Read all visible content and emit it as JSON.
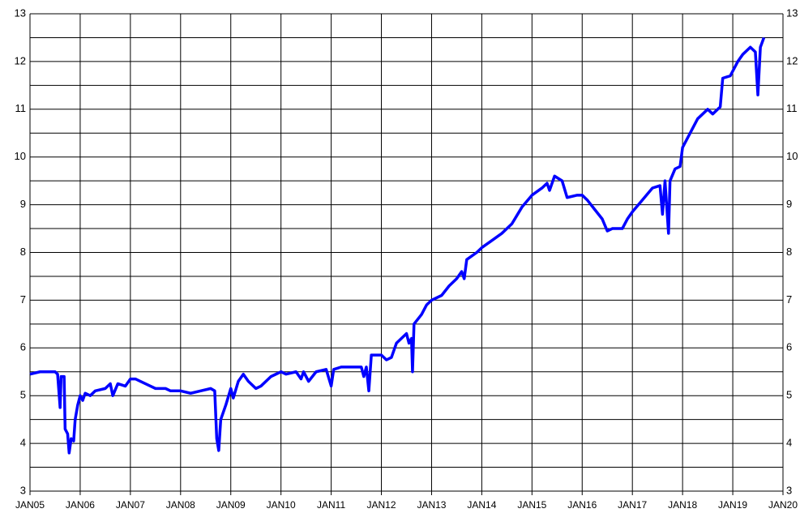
{
  "chart_data": {
    "type": "line",
    "x": [
      2005.0,
      2005.2,
      2005.4,
      2005.5,
      2005.55,
      2005.6,
      2005.62,
      2005.68,
      2005.7,
      2005.75,
      2005.78,
      2005.82,
      2005.87,
      2005.9,
      2005.95,
      2006.0,
      2006.05,
      2006.1,
      2006.2,
      2006.3,
      2006.5,
      2006.6,
      2006.65,
      2006.75,
      2006.9,
      2007.0,
      2007.1,
      2007.2,
      2007.4,
      2007.5,
      2007.7,
      2007.8,
      2008.0,
      2008.2,
      2008.4,
      2008.6,
      2008.68,
      2008.72,
      2008.76,
      2008.8,
      2008.9,
      2009.0,
      2009.05,
      2009.15,
      2009.25,
      2009.35,
      2009.5,
      2009.6,
      2009.8,
      2010.0,
      2010.1,
      2010.3,
      2010.4,
      2010.45,
      2010.55,
      2010.7,
      2010.9,
      2011.0,
      2011.05,
      2011.2,
      2011.4,
      2011.6,
      2011.65,
      2011.7,
      2011.75,
      2011.8,
      2012.0,
      2012.1,
      2012.2,
      2012.3,
      2012.4,
      2012.5,
      2012.55,
      2012.6,
      2012.62,
      2012.65,
      2012.8,
      2012.9,
      2013.0,
      2013.2,
      2013.35,
      2013.5,
      2013.6,
      2013.65,
      2013.7,
      2013.9,
      2014.0,
      2014.2,
      2014.4,
      2014.6,
      2014.8,
      2015.0,
      2015.2,
      2015.3,
      2015.35,
      2015.45,
      2015.6,
      2015.7,
      2015.9,
      2016.0,
      2016.1,
      2016.25,
      2016.4,
      2016.5,
      2016.6,
      2016.8,
      2016.9,
      2017.0,
      2017.2,
      2017.4,
      2017.55,
      2017.6,
      2017.65,
      2017.72,
      2017.75,
      2017.85,
      2017.95,
      2018.0,
      2018.1,
      2018.3,
      2018.5,
      2018.6,
      2018.75,
      2018.8,
      2018.95,
      2019.1,
      2019.2,
      2019.35,
      2019.45,
      2019.5,
      2019.55,
      2019.62
    ],
    "series": [
      {
        "color": "#0000ff",
        "values": [
          5.45,
          5.5,
          5.5,
          5.5,
          5.45,
          4.75,
          5.4,
          5.4,
          4.3,
          4.2,
          3.8,
          4.1,
          4.05,
          4.5,
          4.8,
          5.0,
          4.9,
          5.05,
          5.0,
          5.1,
          5.15,
          5.25,
          5.0,
          5.25,
          5.2,
          5.35,
          5.35,
          5.3,
          5.2,
          5.15,
          5.15,
          5.1,
          5.1,
          5.05,
          5.1,
          5.15,
          5.1,
          4.1,
          3.85,
          4.5,
          4.8,
          5.15,
          4.95,
          5.3,
          5.45,
          5.3,
          5.15,
          5.2,
          5.4,
          5.5,
          5.45,
          5.5,
          5.35,
          5.5,
          5.3,
          5.5,
          5.55,
          5.2,
          5.55,
          5.6,
          5.6,
          5.6,
          5.4,
          5.6,
          5.1,
          5.85,
          5.85,
          5.75,
          5.8,
          6.1,
          6.2,
          6.3,
          6.1,
          6.2,
          5.5,
          6.5,
          6.7,
          6.9,
          7.0,
          7.1,
          7.3,
          7.45,
          7.6,
          7.45,
          7.85,
          8.0,
          8.1,
          8.25,
          8.4,
          8.6,
          8.95,
          9.2,
          9.35,
          9.45,
          9.3,
          9.6,
          9.5,
          9.15,
          9.2,
          9.2,
          9.1,
          8.9,
          8.7,
          8.45,
          8.5,
          8.5,
          8.7,
          8.85,
          9.1,
          9.35,
          9.4,
          8.8,
          9.5,
          8.4,
          9.5,
          9.75,
          9.8,
          10.2,
          10.4,
          10.8,
          11.0,
          10.9,
          11.05,
          11.65,
          11.7,
          12.0,
          12.15,
          12.3,
          12.2,
          11.3,
          12.3,
          12.5
        ]
      }
    ],
    "xlim": [
      2005,
      2020
    ],
    "xticks": [
      {
        "value": 2005,
        "label": "JAN05"
      },
      {
        "value": 2006,
        "label": "JAN06"
      },
      {
        "value": 2007,
        "label": "JAN07"
      },
      {
        "value": 2008,
        "label": "JAN08"
      },
      {
        "value": 2009,
        "label": "JAN09"
      },
      {
        "value": 2010,
        "label": "JAN10"
      },
      {
        "value": 2011,
        "label": "JAN11"
      },
      {
        "value": 2012,
        "label": "JAN12"
      },
      {
        "value": 2013,
        "label": "JAN13"
      },
      {
        "value": 2014,
        "label": "JAN14"
      },
      {
        "value": 2015,
        "label": "JAN15"
      },
      {
        "value": 2016,
        "label": "JAN16"
      },
      {
        "value": 2017,
        "label": "JAN17"
      },
      {
        "value": 2018,
        "label": "JAN18"
      },
      {
        "value": 2019,
        "label": "JAN19"
      },
      {
        "value": 2020,
        "label": "JAN20"
      }
    ],
    "ylim": [
      3,
      13
    ],
    "yticks": [
      3,
      4,
      5,
      6,
      7,
      8,
      9,
      10,
      11,
      12,
      13
    ],
    "y_minor_ticks": [
      3.5,
      4.5,
      5.5,
      6.5,
      7.5,
      8.5,
      9.5,
      10.5,
      11.5,
      12.5
    ],
    "grid": true
  }
}
